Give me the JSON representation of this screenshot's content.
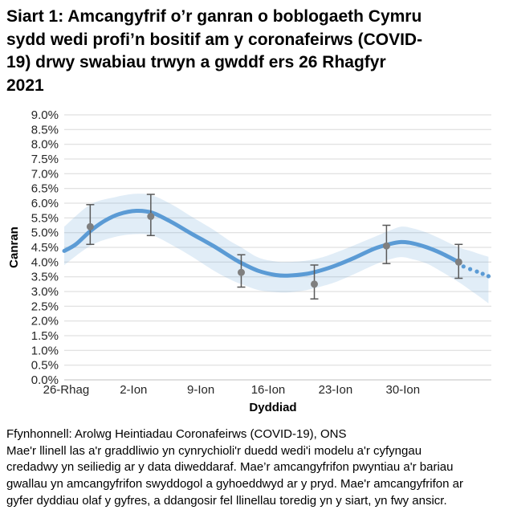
{
  "title": {
    "lines": [
      "Siart 1: Amcangyfrif o’r ganran o boblogaeth Cymru",
      "sydd wedi profi’n bositif am y coronafeirws (COVID-",
      "19) drwy swabiau trwyn a gwddf ers 26 Rhagfyr",
      "2021"
    ]
  },
  "footer": {
    "source": "Ffynhonnell: Arolwg Heintiadau Coronafeirws (COVID-19), ONS",
    "note_lines": [
      "Mae'r llinell las a'r graddliwio yn cynrychioli'r duedd wedi'i modelu a'r cyfyngau",
      "credadwy yn seiliedig ar y data diweddaraf. Mae’r amcangyfrifon pwyntiau a'r bariau",
      "gwallau yn amcangyfrifon swyddogol a gyhoeddwyd ar y pryd. Mae'r amcangyfrifon ar",
      "gyfer dyddiau olaf y gyfres, a ddangosir fel llinellau toredig yn y siart, yn fwy ansicr."
    ]
  },
  "chart_data": {
    "type": "line",
    "xlabel": "Dyddiad",
    "ylabel": "Canran",
    "x_unit": "days-since-26-Rhag-2021",
    "x_range": [
      -0.2,
      44.2
    ],
    "y_range": [
      0,
      9
    ],
    "grid": true,
    "x_ticks": [
      {
        "day": 0,
        "label": "26-Rhag"
      },
      {
        "day": 7,
        "label": "2-Ion"
      },
      {
        "day": 14,
        "label": "9-Ion"
      },
      {
        "day": 21,
        "label": "16-Ion"
      },
      {
        "day": 28,
        "label": "23-Ion"
      },
      {
        "day": 35,
        "label": "30-Ion"
      }
    ],
    "y_ticks": [
      {
        "value": 0,
        "label": "0.0%"
      },
      {
        "value": 0.5,
        "label": "0.5%"
      },
      {
        "value": 1,
        "label": "1.0%"
      },
      {
        "value": 1.5,
        "label": "1.5%"
      },
      {
        "value": 2,
        "label": "2.0%"
      },
      {
        "value": 2.5,
        "label": "2.5%"
      },
      {
        "value": 3,
        "label": "3.0%"
      },
      {
        "value": 3.5,
        "label": "3.5%"
      },
      {
        "value": 4,
        "label": "4.0%"
      },
      {
        "value": 4.5,
        "label": "4.5%"
      },
      {
        "value": 5,
        "label": "5.0%"
      },
      {
        "value": 5.5,
        "label": "5.5%"
      },
      {
        "value": 6,
        "label": "6.0%"
      },
      {
        "value": 6.5,
        "label": "6.5%"
      },
      {
        "value": 7,
        "label": "7.0%"
      },
      {
        "value": 7.5,
        "label": "7.5%"
      },
      {
        "value": 8,
        "label": "8.0%"
      },
      {
        "value": 8.5,
        "label": "8.5%"
      },
      {
        "value": 9,
        "label": "9.0%"
      }
    ],
    "colors": {
      "trend": "#5b9bd5",
      "band": "#5b9bd5",
      "band_opacity": 0.18,
      "marker": "#7f7f7f",
      "error_bar": "#595959",
      "gridline": "#d9d9d9",
      "axis_line": "#bfbfbf",
      "tick_text": "#262626"
    },
    "trend_solid": [
      [
        -0.2,
        4.38
      ],
      [
        1,
        4.6
      ],
      [
        2.5,
        5.05
      ],
      [
        4,
        5.4
      ],
      [
        5.5,
        5.63
      ],
      [
        7.3,
        5.74
      ],
      [
        9,
        5.67
      ],
      [
        11,
        5.35
      ],
      [
        13,
        4.97
      ],
      [
        15.3,
        4.55
      ],
      [
        17,
        4.2
      ],
      [
        18.2,
        3.97
      ],
      [
        20,
        3.7
      ],
      [
        21.8,
        3.56
      ],
      [
        23,
        3.54
      ],
      [
        25,
        3.6
      ],
      [
        26.5,
        3.72
      ],
      [
        28,
        3.88
      ],
      [
        30,
        4.15
      ],
      [
        32,
        4.45
      ],
      [
        33.5,
        4.6
      ],
      [
        34.8,
        4.68
      ],
      [
        36,
        4.64
      ],
      [
        37.5,
        4.5
      ],
      [
        39,
        4.3
      ],
      [
        40.8,
        4.0
      ]
    ],
    "trend_dotted": [
      [
        41.3,
        3.85
      ],
      [
        42.0,
        3.76
      ],
      [
        42.7,
        3.68
      ],
      [
        43.3,
        3.6
      ],
      [
        43.9,
        3.52
      ]
    ],
    "band_upper": [
      [
        -0.2,
        5.2
      ],
      [
        2.5,
        5.95
      ],
      [
        5,
        6.2
      ],
      [
        7.3,
        6.32
      ],
      [
        9,
        6.26
      ],
      [
        11,
        5.95
      ],
      [
        13,
        5.55
      ],
      [
        15.3,
        5.1
      ],
      [
        17,
        4.72
      ],
      [
        18.2,
        4.5
      ],
      [
        20,
        4.15
      ],
      [
        21.8,
        4.02
      ],
      [
        23,
        4.0
      ],
      [
        25,
        4.05
      ],
      [
        26.5,
        4.15
      ],
      [
        28,
        4.32
      ],
      [
        30,
        4.58
      ],
      [
        32,
        4.85
      ],
      [
        33.5,
        5.05
      ],
      [
        34.8,
        5.2
      ],
      [
        36,
        5.15
      ],
      [
        37.5,
        5.0
      ],
      [
        39,
        4.78
      ],
      [
        40.8,
        4.5
      ],
      [
        42,
        4.38
      ],
      [
        43,
        4.27
      ],
      [
        43.9,
        4.18
      ]
    ],
    "band_lower": [
      [
        -0.2,
        3.9
      ],
      [
        2.5,
        4.55
      ],
      [
        5,
        4.85
      ],
      [
        7.3,
        4.95
      ],
      [
        9,
        4.9
      ],
      [
        11,
        4.58
      ],
      [
        13,
        4.2
      ],
      [
        15.3,
        3.72
      ],
      [
        17,
        3.42
      ],
      [
        18.2,
        3.25
      ],
      [
        20,
        3.05
      ],
      [
        21.8,
        2.98
      ],
      [
        23,
        2.97
      ],
      [
        25,
        3.05
      ],
      [
        26.5,
        3.17
      ],
      [
        28,
        3.32
      ],
      [
        30,
        3.6
      ],
      [
        32,
        3.9
      ],
      [
        33.5,
        4.08
      ],
      [
        34.8,
        4.17
      ],
      [
        36,
        4.1
      ],
      [
        37.5,
        3.95
      ],
      [
        39,
        3.68
      ],
      [
        40.8,
        3.32
      ],
      [
        42,
        3.05
      ],
      [
        43,
        2.82
      ],
      [
        43.9,
        2.6
      ]
    ],
    "points": [
      {
        "day": 2.5,
        "value": 5.2,
        "lo": 4.6,
        "hi": 5.95
      },
      {
        "day": 8.8,
        "value": 5.55,
        "lo": 4.9,
        "hi": 6.3
      },
      {
        "day": 18.2,
        "value": 3.65,
        "lo": 3.15,
        "hi": 4.25
      },
      {
        "day": 25.8,
        "value": 3.25,
        "lo": 2.75,
        "hi": 3.9
      },
      {
        "day": 33.3,
        "value": 4.55,
        "lo": 3.95,
        "hi": 5.25
      },
      {
        "day": 40.8,
        "value": 4.0,
        "lo": 3.45,
        "hi": 4.6
      }
    ]
  }
}
